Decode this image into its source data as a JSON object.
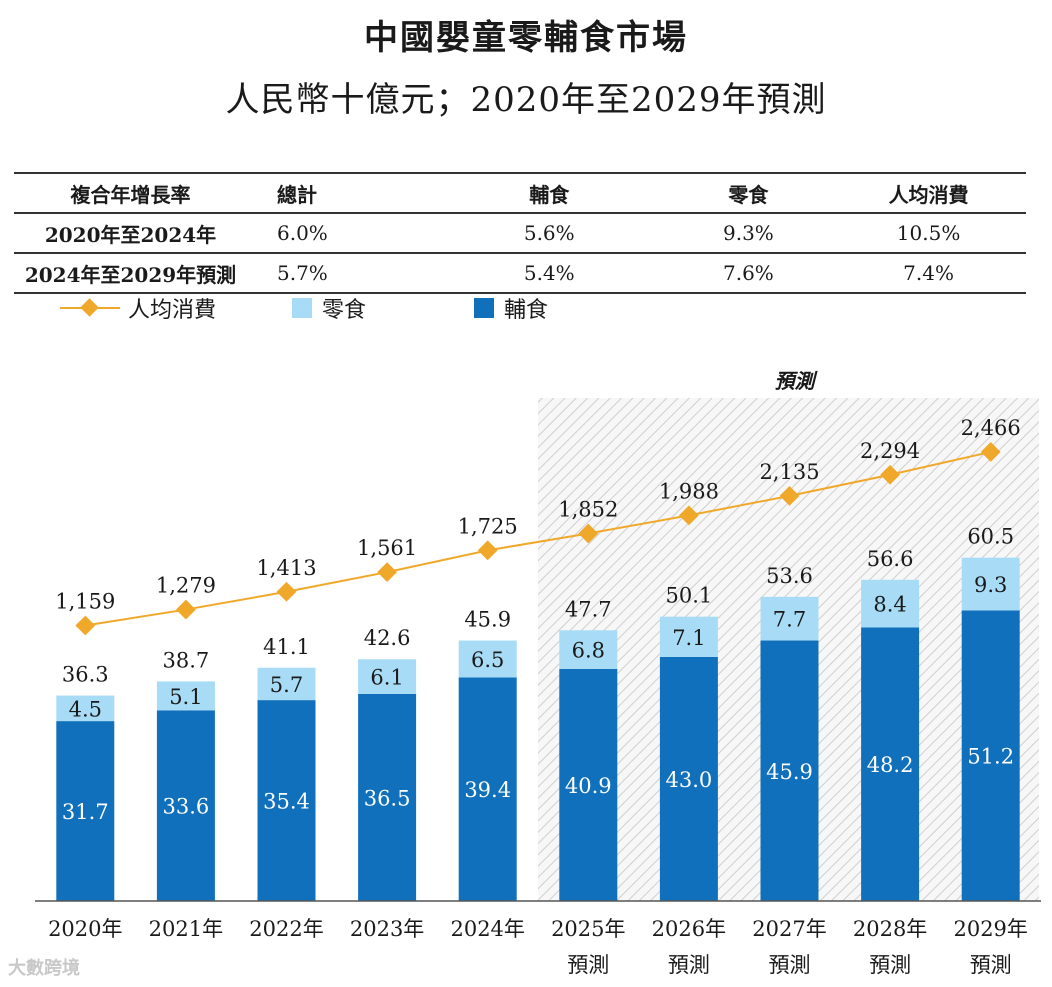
{
  "title": "中國嬰童零輔食市場",
  "subtitle": "人民幣十億元；2020年至2029年預測",
  "cagr_table": {
    "headers": [
      "複合年增長率",
      "總計",
      "輔食",
      "零食",
      "人均消費"
    ],
    "rows": [
      {
        "label": "2020年至2024年",
        "values": [
          "6.0%",
          "5.6%",
          "9.3%",
          "10.5%"
        ]
      },
      {
        "label": "2024年至2029年預測",
        "values": [
          "5.7%",
          "5.4%",
          "7.6%",
          "7.4%"
        ]
      }
    ]
  },
  "legend": {
    "per_capita": "人均消費",
    "snacks": "零食",
    "complementary": "輔食"
  },
  "forecast_label": "預測",
  "watermark": "大數跨境",
  "colors": {
    "complementary": "#1170bb",
    "snacks": "#a8dcf6",
    "per_capita": "#f0a82a"
  },
  "chart_data": {
    "type": "bar",
    "stacked": true,
    "categories": [
      "2020年",
      "2021年",
      "2022年",
      "2023年",
      "2024年",
      "2025年\n預測",
      "2026年\n預測",
      "2027年\n預測",
      "2028年\n預測",
      "2029年\n預測"
    ],
    "series": [
      {
        "name": "輔食",
        "values": [
          31.7,
          33.6,
          35.4,
          36.5,
          39.4,
          40.9,
          43.0,
          45.9,
          48.2,
          51.2
        ]
      },
      {
        "name": "零食",
        "values": [
          4.5,
          5.1,
          5.7,
          6.1,
          6.5,
          6.8,
          7.1,
          7.7,
          8.4,
          9.3
        ]
      }
    ],
    "totals": [
      "36.3",
      "38.7",
      "41.1",
      "42.6",
      "45.9",
      "47.7",
      "50.1",
      "53.6",
      "56.6",
      "60.5"
    ],
    "line_series": {
      "name": "人均消費",
      "values": [
        1159,
        1279,
        1413,
        1561,
        1725,
        1852,
        1988,
        2135,
        2294,
        2466
      ],
      "labels": [
        "1,159",
        "1,279",
        "1,413",
        "1,561",
        "1,725",
        "1,852",
        "1,988",
        "2,135",
        "2,294",
        "2,466"
      ]
    },
    "forecast_start_index": 5
  }
}
